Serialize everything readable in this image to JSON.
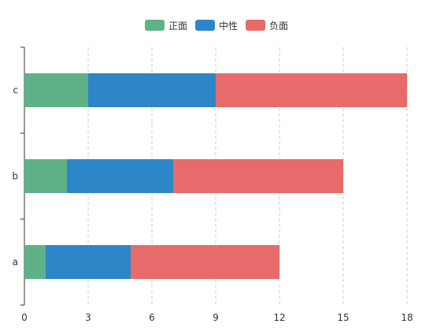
{
  "chart_data": {
    "type": "bar",
    "orientation": "horizontal",
    "stacked": true,
    "categories": [
      "a",
      "b",
      "c"
    ],
    "series": [
      {
        "name": "正面",
        "values": [
          1,
          2,
          3
        ],
        "color": "#5fb287"
      },
      {
        "name": "中性",
        "values": [
          4,
          5,
          6
        ],
        "color": "#2d86c8"
      },
      {
        "name": "负面",
        "values": [
          7,
          8,
          9
        ],
        "color": "#e76b6b"
      }
    ],
    "xlim": [
      0,
      18
    ],
    "xticks": [
      "0",
      "3",
      "6",
      "9",
      "12",
      "15",
      "18"
    ],
    "grid": "vertical-dashed",
    "legend": "top-center"
  }
}
